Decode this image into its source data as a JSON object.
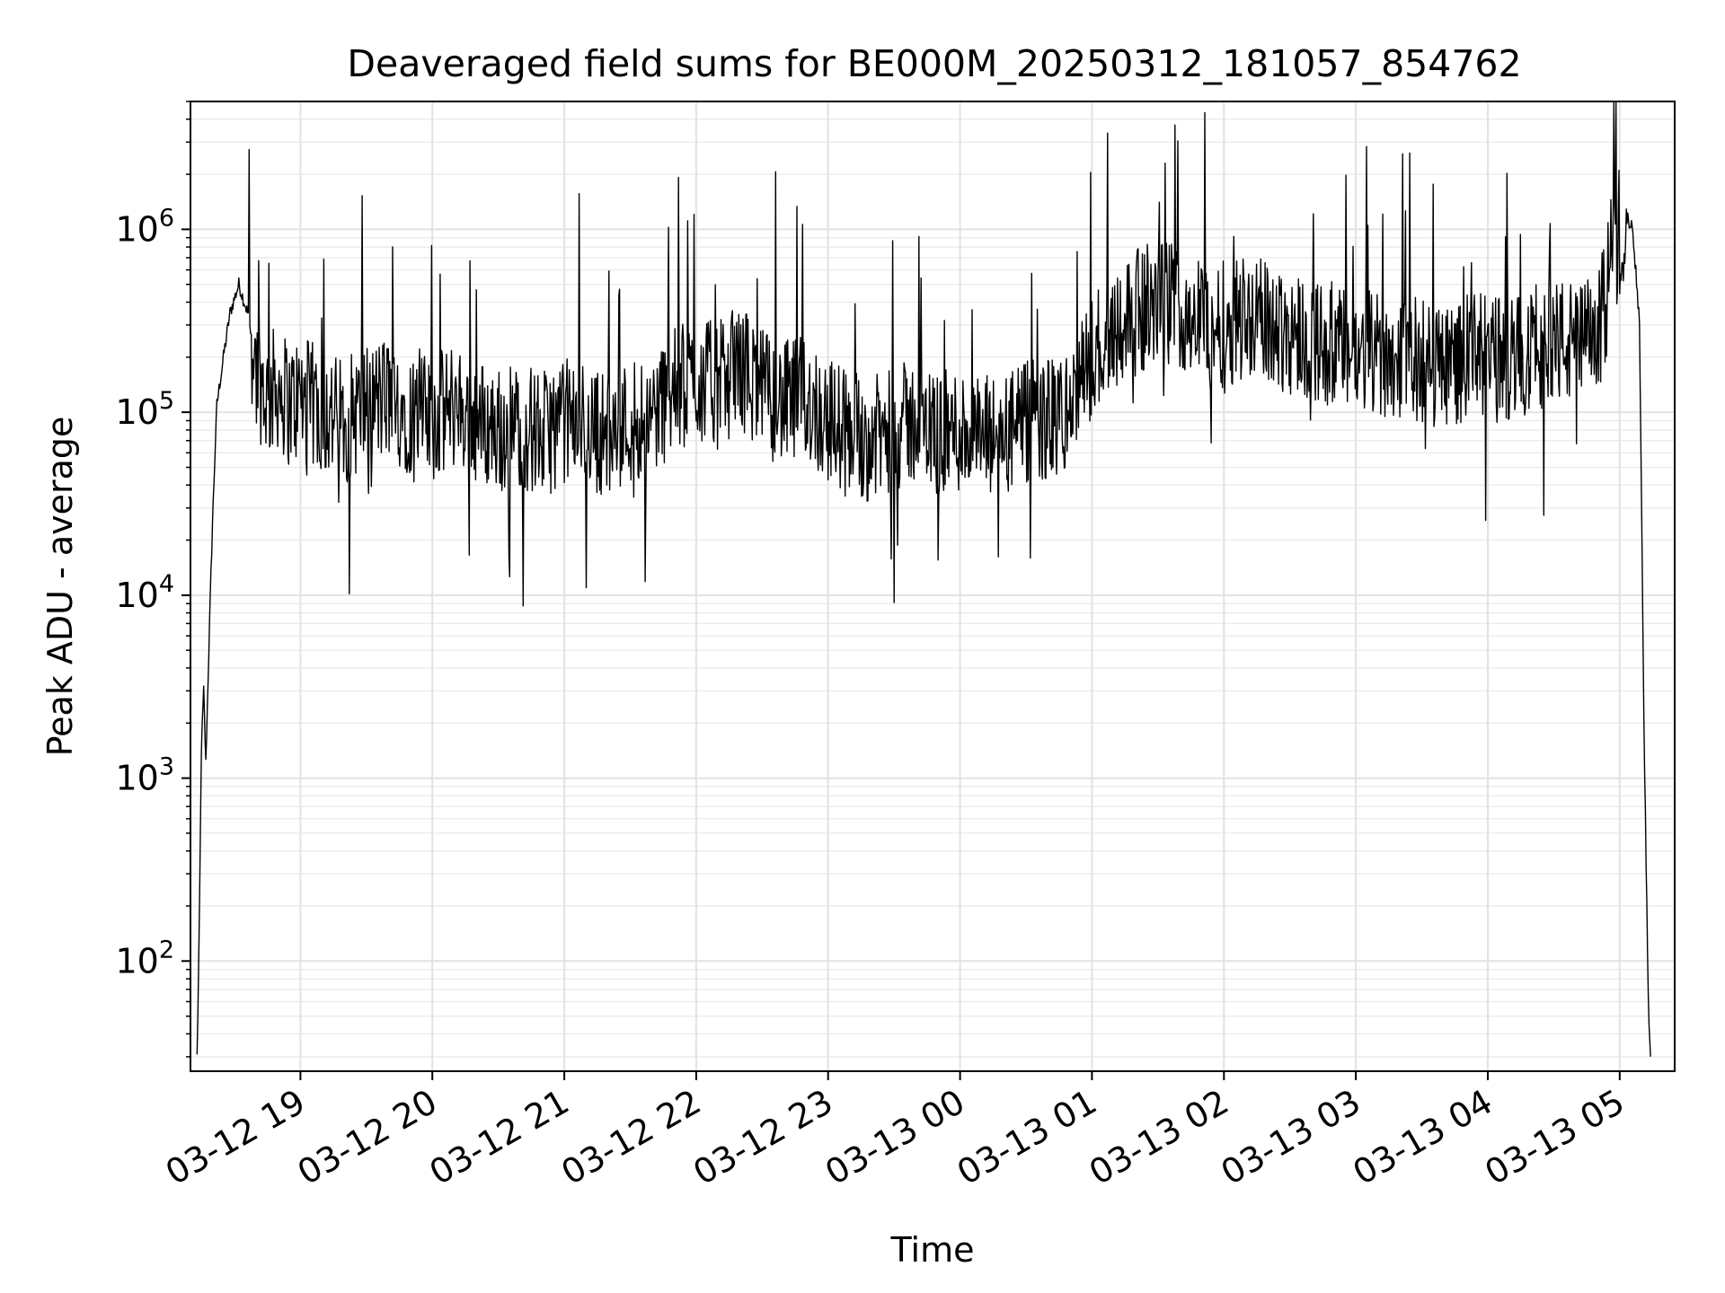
{
  "chart_data": {
    "type": "line",
    "title": "Deaveraged field sums for BE000M_20250312_181057_854762",
    "xlabel": "Time",
    "ylabel": "Peak ADU - average",
    "yscale": "log",
    "ylim": [
      25,
      5000000
    ],
    "xlim": [
      "2025-03-12 18:10",
      "2025-03-13 05:25"
    ],
    "grid": "major and minor, light gray",
    "line_color": "#000000",
    "x_ticks": [
      {
        "value": "2025-03-12 19:00",
        "label": "03-12 19"
      },
      {
        "value": "2025-03-12 20:00",
        "label": "03-12 20"
      },
      {
        "value": "2025-03-12 21:00",
        "label": "03-12 21"
      },
      {
        "value": "2025-03-12 22:00",
        "label": "03-12 22"
      },
      {
        "value": "2025-03-12 23:00",
        "label": "03-12 23"
      },
      {
        "value": "2025-03-13 00:00",
        "label": "03-13 00"
      },
      {
        "value": "2025-03-13 01:00",
        "label": "03-13 01"
      },
      {
        "value": "2025-03-13 02:00",
        "label": "03-13 02"
      },
      {
        "value": "2025-03-13 03:00",
        "label": "03-13 03"
      },
      {
        "value": "2025-03-13 04:00",
        "label": "03-13 04"
      },
      {
        "value": "2025-03-13 05:00",
        "label": "03-13 05"
      }
    ],
    "y_ticks": [
      {
        "value": 100,
        "base": "10",
        "exp": "2"
      },
      {
        "value": 1000,
        "base": "10",
        "exp": "3"
      },
      {
        "value": 10000,
        "base": "10",
        "exp": "4"
      },
      {
        "value": 100000,
        "base": "10",
        "exp": "5"
      },
      {
        "value": 1000000,
        "base": "10",
        "exp": "6"
      }
    ],
    "series": [
      {
        "x": [
          "2025-03-12 18:13",
          "2025-03-12 18:14",
          "2025-03-12 18:15",
          "2025-03-12 18:16",
          "2025-03-12 18:17",
          "2025-03-12 18:18",
          "2025-03-12 18:20",
          "2025-03-12 18:22",
          "2025-03-12 18:25",
          "2025-03-12 18:28",
          "2025-03-12 18:32",
          "2025-03-12 18:36",
          "2025-03-12 18:40",
          "2025-03-12 18:45",
          "2025-03-12 18:50",
          "2025-03-12 18:55",
          "2025-03-12 19:00",
          "2025-03-12 19:10",
          "2025-03-12 19:20",
          "2025-03-12 19:30",
          "2025-03-12 19:40",
          "2025-03-12 19:50",
          "2025-03-12 20:00",
          "2025-03-12 20:10",
          "2025-03-12 20:20",
          "2025-03-12 20:30",
          "2025-03-12 20:40",
          "2025-03-12 20:50",
          "2025-03-12 21:00",
          "2025-03-12 21:10",
          "2025-03-12 21:20",
          "2025-03-12 21:30",
          "2025-03-12 21:40",
          "2025-03-12 21:50",
          "2025-03-12 22:00",
          "2025-03-12 22:10",
          "2025-03-12 22:20",
          "2025-03-12 22:30",
          "2025-03-12 22:40",
          "2025-03-12 22:50",
          "2025-03-12 23:00",
          "2025-03-12 23:10",
          "2025-03-12 23:20",
          "2025-03-12 23:30",
          "2025-03-12 23:40",
          "2025-03-12 23:50",
          "2025-03-13 00:00",
          "2025-03-13 00:10",
          "2025-03-13 00:20",
          "2025-03-13 00:30",
          "2025-03-13 00:40",
          "2025-03-13 00:50",
          "2025-03-13 01:00",
          "2025-03-13 01:10",
          "2025-03-13 01:20",
          "2025-03-13 01:30",
          "2025-03-13 01:40",
          "2025-03-13 01:50",
          "2025-03-13 02:00",
          "2025-03-13 02:10",
          "2025-03-13 02:20",
          "2025-03-13 02:30",
          "2025-03-13 02:40",
          "2025-03-13 02:50",
          "2025-03-13 03:00",
          "2025-03-13 03:10",
          "2025-03-13 03:20",
          "2025-03-13 03:30",
          "2025-03-13 03:40",
          "2025-03-13 03:50",
          "2025-03-13 04:00",
          "2025-03-13 04:10",
          "2025-03-13 04:20",
          "2025-03-13 04:30",
          "2025-03-13 04:40",
          "2025-03-13 04:50",
          "2025-03-13 04:55",
          "2025-03-13 05:00",
          "2025-03-13 05:03",
          "2025-03-13 05:06",
          "2025-03-13 05:09",
          "2025-03-13 05:11",
          "2025-03-13 05:13",
          "2025-03-13 05:14"
        ],
        "y": [
          30,
          150,
          1500,
          3000,
          1200,
          3500,
          25000,
          110000,
          200000,
          350000,
          500000,
          350000,
          170000,
          120000,
          140000,
          110000,
          120000,
          100000,
          90000,
          110000,
          120000,
          100000,
          90000,
          110000,
          90000,
          80000,
          85000,
          75000,
          90000,
          85000,
          75000,
          90000,
          100000,
          130000,
          150000,
          140000,
          180000,
          130000,
          110000,
          120000,
          90000,
          80000,
          70000,
          80000,
          90000,
          75000,
          80000,
          70000,
          75000,
          85000,
          90000,
          100000,
          200000,
          300000,
          350000,
          400000,
          380000,
          320000,
          300000,
          350000,
          300000,
          280000,
          250000,
          230000,
          200000,
          210000,
          200000,
          190000,
          180000,
          200000,
          200000,
          190000,
          220000,
          250000,
          230000,
          260000,
          500000,
          900000,
          1200000,
          1000000,
          300000,
          2000,
          60,
          30
        ]
      }
    ]
  }
}
